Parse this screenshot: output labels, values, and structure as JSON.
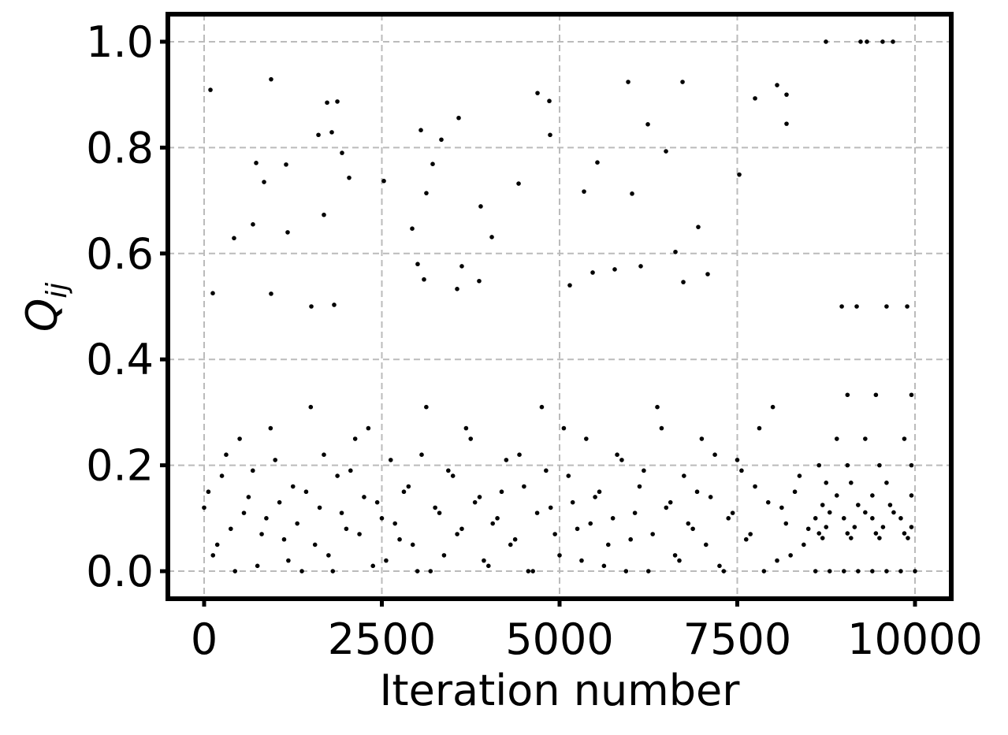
{
  "chart_data": {
    "type": "scatter",
    "xlabel": "Iteration number",
    "ylabel": "Q",
    "ylabel_subscript": "ij",
    "xlim": [
      -510,
      10510
    ],
    "ylim": [
      -0.052,
      1.052
    ],
    "xticks": [
      0,
      2500,
      5000,
      7500,
      10000
    ],
    "yticks": [
      {
        "value": 0,
        "label": "0.0"
      },
      0.2,
      0.4,
      0.6,
      0.8,
      {
        "value": 1,
        "label": "1.0"
      }
    ],
    "grid": true,
    "series": [
      {
        "color": "#000000",
        "x": [
          0,
          125,
          250,
          375,
          500,
          625,
          750,
          875,
          1000,
          1125,
          1250,
          1375,
          1500,
          1625,
          1750,
          1875,
          2000,
          2125,
          2250,
          2375,
          2500,
          2625,
          2750,
          2875,
          3000,
          3125,
          3250,
          3375,
          3500,
          3625,
          3750,
          3875,
          4000,
          4125,
          4250,
          4375,
          4500,
          4625,
          4750,
          4875,
          5000,
          5125,
          5250,
          5375,
          5500,
          5625,
          5750,
          5875,
          6000,
          6125,
          6250,
          6375,
          6500,
          6625,
          6750,
          6875,
          7000,
          7125,
          7250,
          7375,
          7500,
          7625,
          7750,
          7875,
          8000,
          8125,
          8250,
          8375,
          8500,
          60,
          185,
          310,
          435,
          560,
          685,
          810,
          935,
          1060,
          1185,
          1310,
          1435,
          1560,
          1685,
          1810,
          1935,
          2060,
          2185,
          2310,
          2435,
          2560,
          2685,
          2810,
          2935,
          3060,
          3185,
          3310,
          3435,
          3560,
          3685,
          3810,
          3935,
          4060,
          4185,
          4310,
          4435,
          4560,
          4685,
          4810,
          4935,
          5060,
          5185,
          5310,
          5435,
          5560,
          5685,
          5810,
          5935,
          6060,
          6185,
          6310,
          6435,
          6560,
          6685,
          6810,
          6935,
          7060,
          7185,
          7310,
          7435,
          7560,
          7685,
          7810,
          7935,
          8060,
          8185,
          8310,
          8435,
          89,
          942,
          1730,
          1874,
          1608,
          1796,
          1940,
          2040,
          1153,
          732,
          843,
          421,
          687,
          1175,
          1685,
          2528,
          3049,
          3215,
          3337,
          3581,
          3126,
          3891,
          4047,
          4424,
          4690,
          4856,
          4867,
          2927,
          3004,
          3093,
          3559,
          3625,
          3869,
          5344,
          5532,
          5965,
          6020,
          6242,
          6497,
          6730,
          6630,
          6951,
          7084,
          7528,
          7750,
          8060,
          8193,
          8193,
          5144,
          5466,
          5776,
          6142,
          6741,
          122,
          942,
          1508,
          1829,
          8747,
          9235,
          9324,
          9545,
          9690,
          8600,
          8800,
          9000,
          9200,
          9400,
          9600,
          9800,
          10000,
          8700,
          9100,
          9500,
          9900,
          8650,
          9050,
          9450,
          9850,
          8750,
          9150,
          9550,
          9950,
          8600,
          9000,
          9400,
          9800,
          8800,
          9300,
          9700,
          8700,
          9200,
          9650,
          8900,
          9400,
          9950,
          8750,
          9100,
          9600,
          8650,
          9050,
          9500,
          9950,
          8900,
          9300,
          9850,
          9050,
          9450,
          9950,
          8970,
          9180,
          9600,
          9890
        ],
        "values": [
          0.12,
          0.03,
          0.18,
          0.08,
          0.25,
          0.14,
          0.01,
          0.1,
          0.21,
          0.06,
          0.16,
          0.0,
          0.31,
          0.12,
          0.03,
          0.18,
          0.08,
          0.25,
          0.14,
          0.01,
          0.1,
          0.21,
          0.06,
          0.16,
          0.0,
          0.31,
          0.12,
          0.03,
          0.18,
          0.08,
          0.25,
          0.14,
          0.01,
          0.1,
          0.21,
          0.06,
          0.16,
          0.0,
          0.31,
          0.12,
          0.03,
          0.18,
          0.08,
          0.25,
          0.14,
          0.01,
          0.1,
          0.21,
          0.06,
          0.16,
          0.0,
          0.31,
          0.12,
          0.03,
          0.18,
          0.08,
          0.25,
          0.14,
          0.01,
          0.1,
          0.21,
          0.06,
          0.16,
          0.0,
          0.31,
          0.12,
          0.03,
          0.18,
          0.08,
          0.15,
          0.05,
          0.22,
          0.0,
          0.11,
          0.19,
          0.07,
          0.27,
          0.13,
          0.02,
          0.09,
          0.15,
          0.05,
          0.22,
          0.0,
          0.11,
          0.19,
          0.07,
          0.27,
          0.13,
          0.02,
          0.09,
          0.15,
          0.05,
          0.22,
          0.0,
          0.11,
          0.19,
          0.07,
          0.27,
          0.13,
          0.02,
          0.09,
          0.15,
          0.05,
          0.22,
          0.0,
          0.11,
          0.19,
          0.07,
          0.27,
          0.13,
          0.02,
          0.09,
          0.15,
          0.05,
          0.22,
          0.0,
          0.11,
          0.19,
          0.07,
          0.27,
          0.13,
          0.02,
          0.09,
          0.15,
          0.05,
          0.22,
          0.0,
          0.11,
          0.19,
          0.07,
          0.27,
          0.13,
          0.02,
          0.09,
          0.15,
          0.05,
          0.909,
          0.929,
          0.885,
          0.887,
          0.824,
          0.829,
          0.79,
          0.743,
          0.768,
          0.771,
          0.735,
          0.629,
          0.655,
          0.64,
          0.673,
          0.737,
          0.833,
          0.769,
          0.815,
          0.856,
          0.714,
          0.689,
          0.631,
          0.732,
          0.903,
          0.888,
          0.824,
          0.647,
          0.58,
          0.551,
          0.533,
          0.576,
          0.548,
          0.717,
          0.772,
          0.924,
          0.713,
          0.844,
          0.793,
          0.924,
          0.603,
          0.65,
          0.561,
          0.749,
          0.893,
          0.918,
          0.9,
          0.845,
          0.54,
          0.564,
          0.57,
          0.576,
          0.546,
          0.525,
          0.524,
          0.5,
          0.503,
          1,
          1,
          1,
          1,
          1,
          0,
          0,
          0,
          0,
          0,
          0,
          0,
          0,
          0.0625,
          0.0625,
          0.0625,
          0.0625,
          0.0714,
          0.0714,
          0.0714,
          0.0714,
          0.0833,
          0.0833,
          0.0833,
          0.0833,
          0.1,
          0.1,
          0.1,
          0.1,
          0.111,
          0.111,
          0.111,
          0.125,
          0.125,
          0.125,
          0.143,
          0.143,
          0.143,
          0.167,
          0.167,
          0.167,
          0.2,
          0.2,
          0.2,
          0.2,
          0.25,
          0.25,
          0.25,
          0.333,
          0.333,
          0.333,
          0.5,
          0.5,
          0.5,
          0.5
        ]
      }
    ]
  }
}
